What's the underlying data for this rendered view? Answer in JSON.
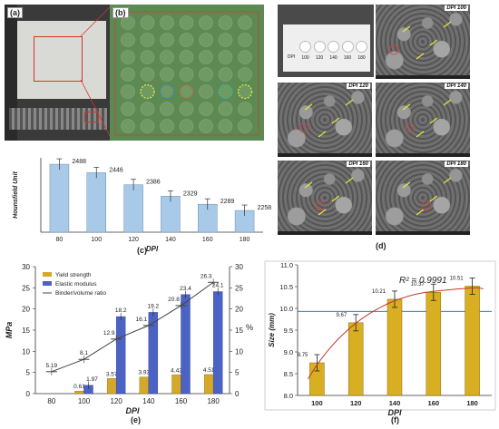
{
  "panels": {
    "a": "(a)",
    "b": "(b)",
    "c": "(c)",
    "d": "(d)",
    "e": "(e)",
    "f": "(f)"
  },
  "colors": {
    "hu_bar": "#a9c9e8",
    "yield_bar": "#d4a82a",
    "elastic_bar": "#4b63c4",
    "ratio_line": "#444444",
    "size_bar": "#d8ae22",
    "fit_curve": "#c0392b",
    "ref_line": "#2e5fa8",
    "green_plate": "#5c8a52"
  },
  "sem": {
    "labels": [
      "DPI 100",
      "DPI 120",
      "DPI 140",
      "DPI 160",
      "DPI 180"
    ],
    "vial_labels": [
      "DPI",
      "100",
      "120",
      "140",
      "160",
      "180"
    ]
  },
  "chart_data": [
    {
      "id": "c",
      "type": "bar",
      "title": "",
      "xlabel": "DPI",
      "ylabel": "Hounsfield Unit",
      "categories": [
        "80",
        "100",
        "120",
        "140",
        "160",
        "180"
      ],
      "values": [
        2488,
        2446,
        2386,
        2329,
        2289,
        2258
      ],
      "ylim": [
        2150,
        2520
      ],
      "grid": false
    },
    {
      "id": "e",
      "type": "bar",
      "xlabel": "DPI",
      "ylabel": "MPa",
      "y2label": "%",
      "categories": [
        "80",
        "100",
        "120",
        "140",
        "160",
        "180"
      ],
      "series": [
        {
          "name": "Yield strength",
          "type": "bar",
          "values": [
            null,
            0.61,
            3.57,
            3.93,
            4.43,
            4.51
          ]
        },
        {
          "name": "Elastic modulus",
          "type": "bar",
          "values": [
            null,
            1.97,
            18.2,
            19.2,
            23.4,
            24.1
          ]
        },
        {
          "name": "Binder/volume ratio",
          "type": "line",
          "axis": "right",
          "values": [
            5.19,
            8.1,
            12.9,
            16.1,
            20.8,
            26.3
          ]
        }
      ],
      "value_labels": {
        "yield": [
          "",
          "0.61",
          "3.57",
          "3.93",
          "4.43",
          "4.51"
        ],
        "elastic": [
          "",
          "1.97",
          "18.2",
          "19.2",
          "23.4",
          "24.1"
        ],
        "ratio": [
          "5.19",
          "8.1",
          "12.9",
          "16.1",
          "20.8",
          "26.3"
        ]
      },
      "ylim": [
        0,
        30
      ],
      "y2lim": [
        0,
        30
      ],
      "yticks": [
        "0",
        "5",
        "10",
        "15",
        "20",
        "25",
        "30"
      ],
      "legend": "top-left"
    },
    {
      "id": "f",
      "type": "bar",
      "xlabel": "DPI",
      "ylabel": "Size (mm)",
      "categories": [
        "100",
        "120",
        "140",
        "160",
        "180"
      ],
      "values": [
        8.75,
        9.67,
        10.21,
        10.37,
        10.51
      ],
      "ylim": [
        8,
        11
      ],
      "yticks": [
        "8.0",
        "8.5",
        "9.0",
        "9.5",
        "10.0",
        "10.5",
        "11.0"
      ],
      "annotation": "R² = 0.9991",
      "reference_y": 9.93,
      "fit": "quadratic"
    }
  ]
}
